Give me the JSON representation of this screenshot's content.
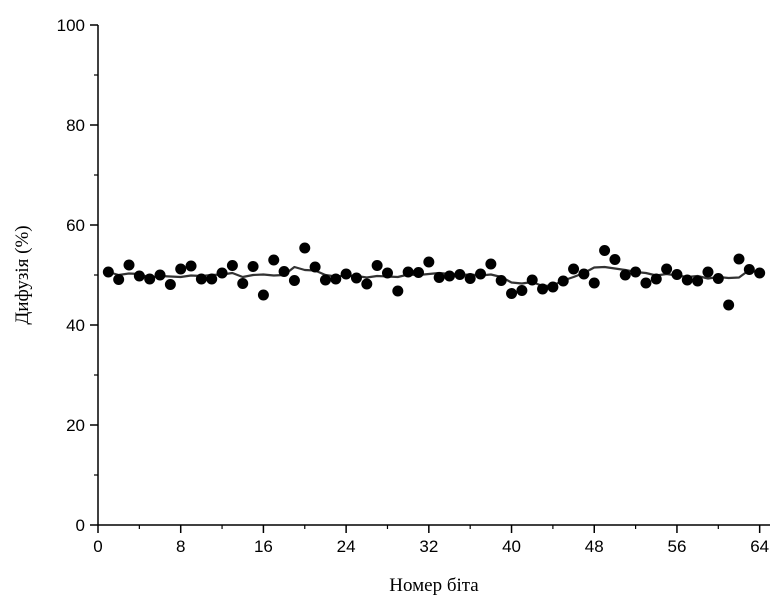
{
  "chart_data": {
    "type": "scatter",
    "xlabel": "Номер біта",
    "ylabel": "Дифузія (%)",
    "xlim": [
      0,
      65
    ],
    "ylim": [
      0,
      100
    ],
    "x_ticks": [
      0,
      8,
      16,
      24,
      32,
      40,
      48,
      56,
      64
    ],
    "y_ticks": [
      0,
      20,
      40,
      60,
      80,
      100
    ],
    "x_tick_labels": [
      "0",
      "8",
      "16",
      "24",
      "32",
      "40",
      "48",
      "56",
      "64"
    ],
    "y_tick_labels": [
      "0",
      "20",
      "40",
      "60",
      "80",
      "100"
    ],
    "grid": false,
    "series": [
      {
        "kind": "points",
        "x": [
          1,
          2,
          3,
          4,
          5,
          6,
          7,
          8,
          9,
          10,
          11,
          12,
          13,
          14,
          15,
          16,
          17,
          18,
          19,
          20,
          21,
          22,
          23,
          24,
          25,
          26,
          27,
          28,
          29,
          30,
          31,
          32,
          33,
          34,
          35,
          36,
          37,
          38,
          39,
          40,
          41,
          42,
          43,
          44,
          45,
          46,
          47,
          48,
          49,
          50,
          51,
          52,
          53,
          54,
          55,
          56,
          57,
          58,
          59,
          60,
          61,
          62,
          63,
          64
        ],
        "y": [
          50.6,
          49.1,
          52.0,
          49.8,
          49.2,
          50.0,
          48.1,
          51.2,
          51.8,
          49.2,
          49.2,
          50.4,
          51.9,
          48.3,
          51.7,
          46.0,
          53.0,
          50.7,
          48.9,
          55.4,
          51.6,
          49.0,
          49.2,
          50.2,
          49.4,
          48.2,
          51.9,
          50.4,
          46.8,
          50.6,
          50.5,
          52.6,
          49.5,
          49.8,
          50.1,
          49.3,
          50.2,
          52.2,
          48.9,
          46.3,
          46.9,
          49.0,
          47.2,
          47.6,
          48.8,
          51.2,
          50.2,
          48.4,
          54.9,
          53.1,
          50.0,
          50.6,
          48.4,
          49.2,
          51.2,
          50.1,
          49.0,
          48.8,
          50.6,
          49.3,
          44.0,
          53.2,
          51.1,
          50.4
        ]
      },
      {
        "kind": "line",
        "x": [
          1,
          2,
          3,
          4,
          5,
          6,
          7,
          8,
          9,
          10,
          11,
          12,
          13,
          14,
          15,
          16,
          17,
          18,
          19,
          20,
          21,
          22,
          23,
          24,
          25,
          26,
          27,
          28,
          29,
          30,
          31,
          32,
          33,
          34,
          35,
          36,
          37,
          38,
          39,
          40,
          41,
          42,
          43,
          44,
          45,
          46,
          47,
          48,
          49,
          50,
          51,
          52,
          53,
          54,
          55,
          56,
          57,
          58,
          59,
          60,
          61,
          62,
          63,
          64
        ],
        "y": [
          50.6,
          50.0,
          50.3,
          50.2,
          49.5,
          49.8,
          49.7,
          49.6,
          49.9,
          49.8,
          50.0,
          50.1,
          50.4,
          49.6,
          50.0,
          50.1,
          49.9,
          50.0,
          51.6,
          51.0,
          50.9,
          50.0,
          49.7,
          49.9,
          49.8,
          49.5,
          49.8,
          49.7,
          49.6,
          50.1,
          50.0,
          50.2,
          50.4,
          50.2,
          50.0,
          50.1,
          49.9,
          50.1,
          49.6,
          48.5,
          48.3,
          48.6,
          47.8,
          47.9,
          48.9,
          49.6,
          50.4,
          51.5,
          51.6,
          51.3,
          51.0,
          50.6,
          50.4,
          49.9,
          50.2,
          49.9,
          49.6,
          49.8,
          49.3,
          49.6,
          49.4,
          49.5,
          51.0,
          50.4
        ]
      }
    ]
  }
}
